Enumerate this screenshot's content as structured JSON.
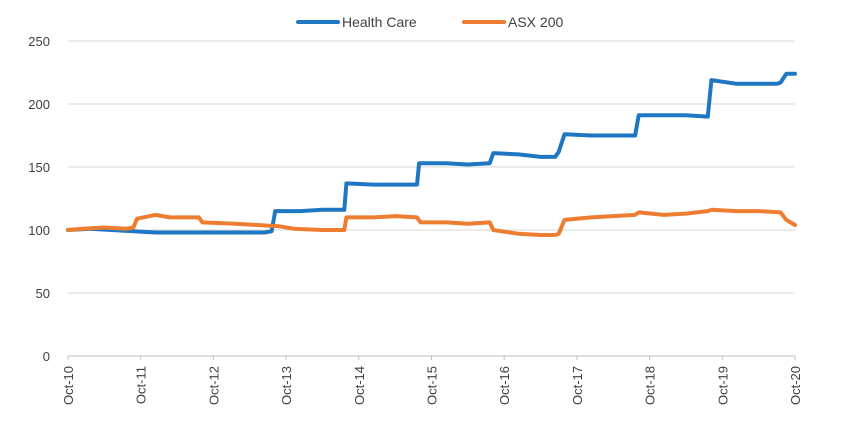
{
  "chart_data": {
    "type": "line",
    "title": "",
    "xlabel": "",
    "ylabel": "",
    "ylim": [
      0,
      250
    ],
    "yticks": [
      0,
      50,
      100,
      150,
      200,
      250
    ],
    "x_tick_labels": [
      "Oct-10",
      "Oct-11",
      "Oct-12",
      "Oct-13",
      "Oct-14",
      "Oct-15",
      "Oct-16",
      "Oct-17",
      "Oct-18",
      "Oct-19",
      "Oct-20"
    ],
    "grid": "horizontal",
    "legend_position": "top-center",
    "series": [
      {
        "name": "Health Care",
        "color": "#1F77C4",
        "points": [
          [
            0,
            100
          ],
          [
            0.3,
            101
          ],
          [
            0.6,
            100
          ],
          [
            0.9,
            99
          ],
          [
            1.2,
            98
          ],
          [
            1.6,
            98
          ],
          [
            2.0,
            98
          ],
          [
            2.4,
            98
          ],
          [
            2.7,
            98
          ],
          [
            2.8,
            99
          ],
          [
            2.85,
            115
          ],
          [
            3.2,
            115
          ],
          [
            3.5,
            116
          ],
          [
            3.8,
            116
          ],
          [
            3.83,
            137
          ],
          [
            4.2,
            136
          ],
          [
            4.5,
            136
          ],
          [
            4.8,
            136
          ],
          [
            4.83,
            153
          ],
          [
            5.2,
            153
          ],
          [
            5.5,
            152
          ],
          [
            5.8,
            153
          ],
          [
            5.85,
            161
          ],
          [
            6.2,
            160
          ],
          [
            6.5,
            158
          ],
          [
            6.7,
            158
          ],
          [
            6.75,
            162
          ],
          [
            6.83,
            176
          ],
          [
            7.2,
            175
          ],
          [
            7.5,
            175
          ],
          [
            7.8,
            175
          ],
          [
            7.85,
            191
          ],
          [
            8.2,
            191
          ],
          [
            8.5,
            191
          ],
          [
            8.8,
            190
          ],
          [
            8.85,
            219
          ],
          [
            9.2,
            216
          ],
          [
            9.5,
            216
          ],
          [
            9.75,
            216
          ],
          [
            9.8,
            217
          ],
          [
            9.88,
            224
          ],
          [
            10.0,
            224
          ]
        ]
      },
      {
        "name": "ASX 200",
        "color": "#ED7D31",
        "points": [
          [
            0,
            100
          ],
          [
            0.2,
            101
          ],
          [
            0.5,
            102
          ],
          [
            0.8,
            101
          ],
          [
            0.9,
            102
          ],
          [
            0.95,
            109
          ],
          [
            1.2,
            112
          ],
          [
            1.4,
            110
          ],
          [
            1.8,
            110
          ],
          [
            1.85,
            106
          ],
          [
            2.3,
            105
          ],
          [
            2.6,
            104
          ],
          [
            2.9,
            103
          ],
          [
            3.1,
            101
          ],
          [
            3.5,
            100
          ],
          [
            3.8,
            100
          ],
          [
            3.83,
            110
          ],
          [
            4.2,
            110
          ],
          [
            4.5,
            111
          ],
          [
            4.8,
            110
          ],
          [
            4.85,
            106
          ],
          [
            5.2,
            106
          ],
          [
            5.5,
            105
          ],
          [
            5.8,
            106
          ],
          [
            5.85,
            100
          ],
          [
            6.2,
            97
          ],
          [
            6.5,
            96
          ],
          [
            6.7,
            96
          ],
          [
            6.75,
            97
          ],
          [
            6.83,
            108
          ],
          [
            7.2,
            110
          ],
          [
            7.5,
            111
          ],
          [
            7.8,
            112
          ],
          [
            7.85,
            114
          ],
          [
            8.2,
            112
          ],
          [
            8.5,
            113
          ],
          [
            8.8,
            115
          ],
          [
            8.85,
            116
          ],
          [
            9.2,
            115
          ],
          [
            9.5,
            115
          ],
          [
            9.8,
            114
          ],
          [
            9.88,
            108
          ],
          [
            10.0,
            104
          ]
        ]
      }
    ]
  }
}
